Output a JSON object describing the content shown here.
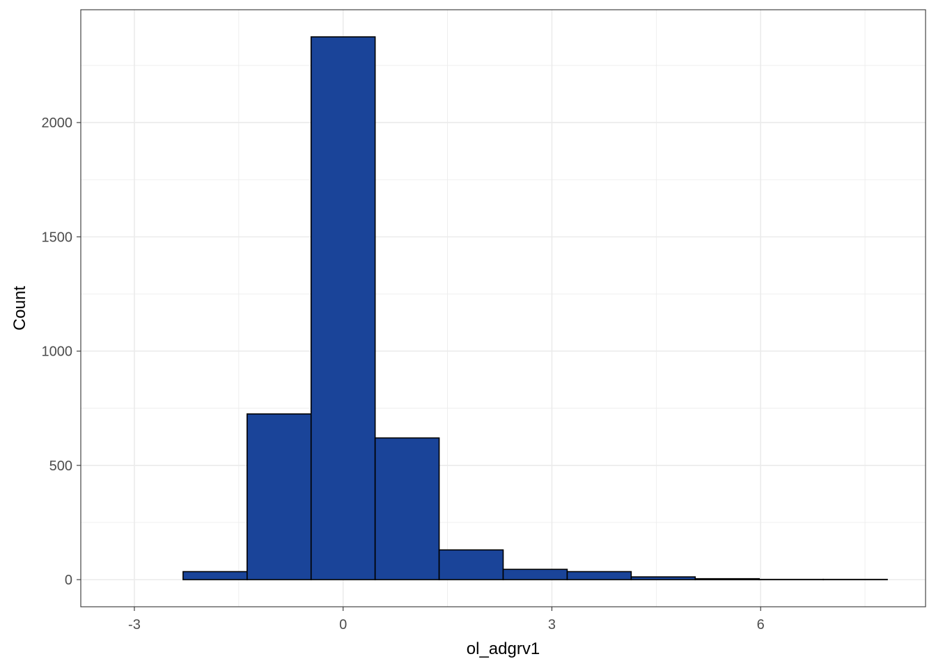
{
  "chart_data": {
    "type": "bar",
    "subtype": "histogram",
    "title": "",
    "xlabel": "ol_adgrv1",
    "ylabel": "Count",
    "bin_width": 0.92,
    "bins": [
      {
        "x0": -3.22,
        "x1": -2.3,
        "count": 0
      },
      {
        "x0": -2.3,
        "x1": -1.38,
        "count": 35
      },
      {
        "x0": -1.38,
        "x1": -0.46,
        "count": 725
      },
      {
        "x0": -0.46,
        "x1": 0.46,
        "count": 2375
      },
      {
        "x0": 0.46,
        "x1": 1.38,
        "count": 620
      },
      {
        "x0": 1.38,
        "x1": 2.3,
        "count": 130
      },
      {
        "x0": 2.3,
        "x1": 3.22,
        "count": 45
      },
      {
        "x0": 3.22,
        "x1": 4.14,
        "count": 35
      },
      {
        "x0": 4.14,
        "x1": 5.06,
        "count": 12
      },
      {
        "x0": 5.06,
        "x1": 5.98,
        "count": 4
      },
      {
        "x0": 5.98,
        "x1": 6.9,
        "count": 1
      },
      {
        "x0": 6.9,
        "x1": 7.82,
        "count": 1
      }
    ],
    "xlim": [
      -3.77,
      8.37
    ],
    "ylim": [
      -118.75,
      2493.75
    ],
    "x_ticks": [
      -3,
      0,
      3,
      6
    ],
    "x_tick_labels": [
      "-3",
      "0",
      "3",
      "6"
    ],
    "y_ticks": [
      0,
      500,
      1000,
      1500,
      2000
    ],
    "y_tick_labels": [
      "0",
      "500",
      "1000",
      "1500",
      "2000"
    ],
    "grid": true,
    "legend": "none",
    "fill_color": "#1A4499",
    "edge_color": "#000000",
    "grid_color": "#EBEBEB",
    "panel_border_color": "#333333"
  }
}
